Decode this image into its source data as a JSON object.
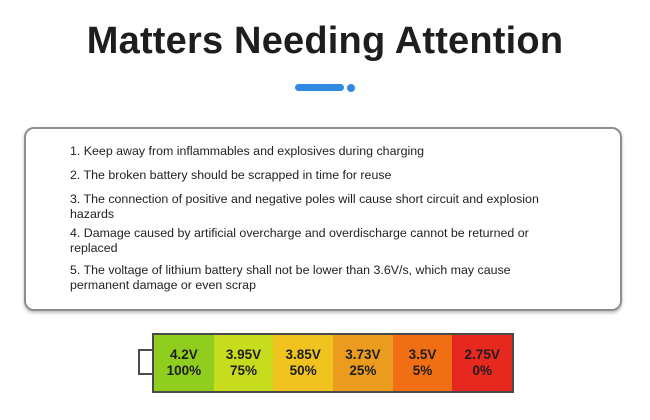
{
  "title": "Matters Needing Attention",
  "notices": [
    "1. Keep away from inflammables and explosives during charging",
    "2. The broken battery should be scrapped in time for reuse",
    "3. The connection of positive and negative poles will cause short circuit and explosion hazards",
    "4. Damage caused by artificial overcharge and overdischarge cannot be returned or replaced",
    "5. The voltage of lithium battery shall not be lower than 3.6V/s, which may cause permanent damage or even scrap"
  ],
  "battery_levels": [
    {
      "voltage": "4.2V",
      "percent": "100%",
      "color": "#8fcd1e"
    },
    {
      "voltage": "3.95V",
      "percent": "75%",
      "color": "#c8dc1e"
    },
    {
      "voltage": "3.85V",
      "percent": "50%",
      "color": "#f0c31e"
    },
    {
      "voltage": "3.73V",
      "percent": "25%",
      "color": "#eb9b1e"
    },
    {
      "voltage": "3.5V",
      "percent": "5%",
      "color": "#f06e14"
    },
    {
      "voltage": "2.75V",
      "percent": "0%",
      "color": "#e6281e"
    }
  ],
  "accent_color": "#2f8ae0"
}
